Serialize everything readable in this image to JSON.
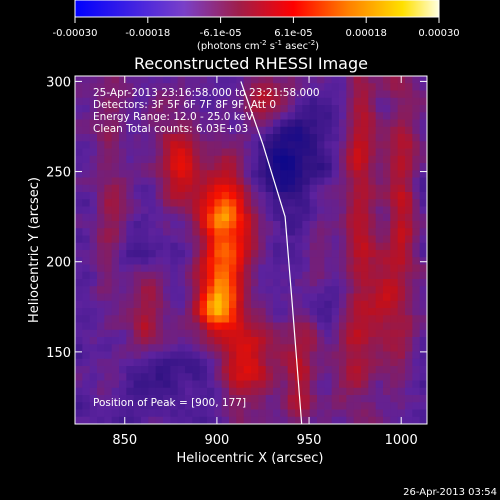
{
  "chart_data": {
    "type": "heatmap",
    "title": "Reconstructed RHESSI Image",
    "xlabel": "Heliocentric X (arcsec)",
    "ylabel": "Heliocentric Y (arcsec)",
    "xlim": [
      823,
      1014
    ],
    "ylim": [
      110,
      303
    ],
    "xticks": [
      850,
      900,
      950,
      1000
    ],
    "yticks": [
      150,
      200,
      250,
      300
    ],
    "colorbar": {
      "ticks": [
        "-0.00030",
        "-0.00018",
        "-6.1e-05",
        "6.1e-05",
        "0.00018",
        "0.00030"
      ],
      "units_main": "(photons cm",
      "units_sup1": "-2",
      "units_mid": " s",
      "units_sup2": "-1",
      "units_after": " asec",
      "units_sup3": "-2",
      "units_end": ")"
    },
    "annotations": {
      "time_range": "25-Apr-2013 23:16:58.000 to 23:21:58.000",
      "detectors": "Detectors: 3F 5F 6F 7F 8F 9F, Att 0",
      "energy": "Energy Range: 12.0 - 25.0 keV",
      "clean_total": "Clean    Total counts: 6.03E+03",
      "peak": "Position of Peak = [900, 177]"
    },
    "peak": {
      "x": 900,
      "y": 177
    },
    "limb_line": {
      "points": [
        [
          913,
          300
        ],
        [
          925,
          265
        ],
        [
          937,
          225
        ],
        [
          941,
          175
        ],
        [
          946,
          110
        ]
      ]
    }
  },
  "footer": {
    "timestamp": "26-Apr-2013 03:54"
  }
}
